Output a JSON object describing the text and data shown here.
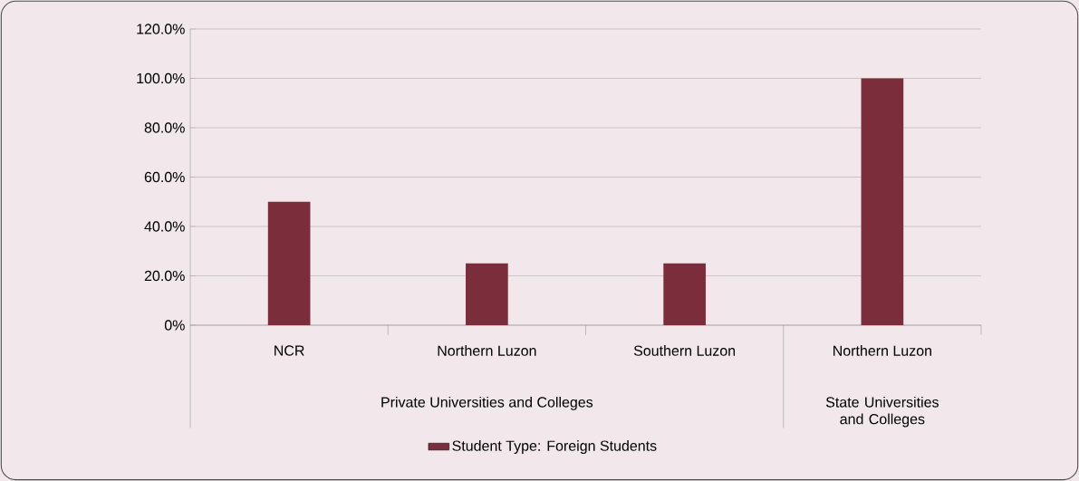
{
  "chart_data": {
    "type": "bar",
    "categories": [
      "NCR",
      "Northern Luzon",
      "Southern Luzon",
      "Northern Luzon"
    ],
    "series": [
      {
        "name": "Student Type: Foreign Students",
        "color": "#7b2d3b",
        "values": [
          50,
          25,
          25,
          100
        ]
      }
    ],
    "ylim": [
      0,
      120
    ],
    "yticks": [
      {
        "value": 0,
        "label": "0%"
      },
      {
        "value": 20,
        "label": "20.0%"
      },
      {
        "value": 40,
        "label": "40.0%"
      },
      {
        "value": 60,
        "label": "60.0%"
      },
      {
        "value": 80,
        "label": "80.0%"
      },
      {
        "value": 100,
        "label": "100.0%"
      },
      {
        "value": 120,
        "label": "120.0%"
      }
    ],
    "grid": "y",
    "legend": "bottom",
    "annotations": [
      "Private Universities and Colleges",
      "State Universities and Colleges"
    ]
  }
}
